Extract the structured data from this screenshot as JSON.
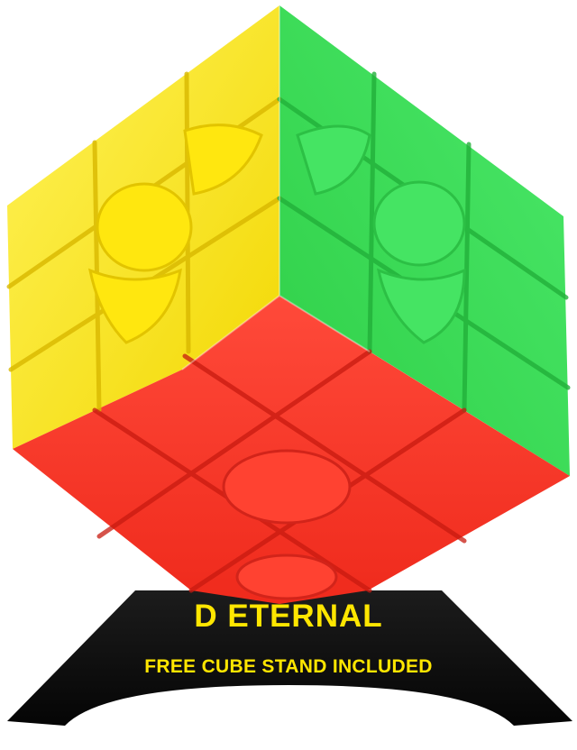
{
  "product": {
    "brand_text": "D ETERNAL",
    "tagline_text": "FREE CUBE STAND INCLUDED"
  },
  "colors": {
    "background": "#ffffff",
    "face_left": "#ffe81f",
    "face_right": "#3fe25a",
    "face_bottom": "#ff3b2c",
    "stand": "#111111",
    "text": "#ffe600"
  },
  "icons": {
    "cube": "speed-cube-3x3-stickerless",
    "stand": "cube-display-stand"
  }
}
